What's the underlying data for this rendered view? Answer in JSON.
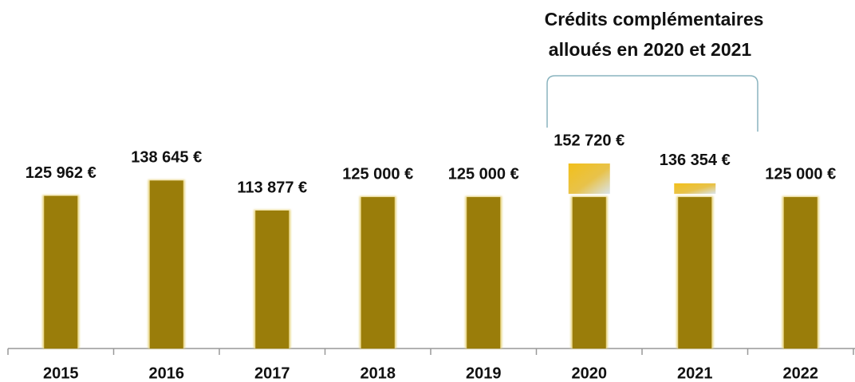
{
  "chart_data": {
    "type": "bar",
    "annotation": [
      "Crédits complémentaires",
      "alloués en 2020 et 2021"
    ],
    "categories": [
      "2015",
      "2016",
      "2017",
      "2018",
      "2019",
      "2020",
      "2021",
      "2022"
    ],
    "series": [
      {
        "color": "#9a7d0a",
        "values": [
          125962,
          138645,
          113877,
          125000,
          125000,
          125000,
          125000,
          125000
        ]
      },
      {
        "color": "#f0c020",
        "values": [
          null,
          null,
          null,
          null,
          null,
          27720,
          11354,
          null
        ]
      }
    ],
    "totals": {
      "values": [
        125962,
        138645,
        113877,
        125000,
        125000,
        152720,
        136354,
        125000
      ],
      "value_labels": [
        "125 962 €",
        "138 645 €",
        "113 877 €",
        "125 000 €",
        "125 000 €",
        "152 720 €",
        "136 354 €",
        "125 000 €"
      ]
    }
  }
}
